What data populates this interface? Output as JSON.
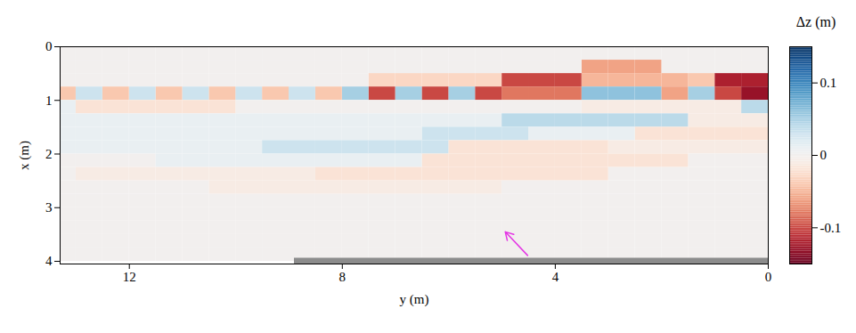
{
  "chart_data": {
    "type": "heatmap",
    "xlabel": "y (m)",
    "ylabel": "x (m)",
    "xlim": [
      13.3,
      0
    ],
    "xticks": [
      0,
      4,
      8,
      12
    ],
    "ylim": [
      0,
      4.05
    ],
    "yticks": [
      0,
      1,
      2,
      3,
      4
    ],
    "cells": {
      "y_edges": [
        0,
        0.5,
        1,
        1.5,
        2,
        2.5,
        3,
        3.5,
        4,
        4.5,
        5,
        5.5,
        6,
        6.5,
        7,
        7.5,
        8,
        8.5,
        9,
        9.5,
        10,
        10.5,
        11,
        11.5,
        12,
        12.5,
        13,
        13.5
      ],
      "x_edges": [
        0,
        0.25,
        0.5,
        0.75,
        1,
        1.25,
        1.5,
        1.75,
        2,
        2.25,
        2.5,
        2.75,
        3,
        3.25,
        3.5,
        3.75,
        4
      ],
      "z": [
        [
          0,
          0,
          0,
          0,
          0,
          0,
          0,
          0,
          0,
          0,
          0,
          0,
          0,
          0,
          0,
          0,
          0,
          0,
          0,
          0,
          0,
          0,
          0,
          0,
          0,
          0,
          0
        ],
        [
          0,
          0,
          0,
          0,
          -0.06,
          -0.06,
          -0.06,
          0,
          0,
          0,
          0,
          0,
          0,
          0,
          0,
          0,
          0,
          0,
          0,
          0,
          0,
          0,
          0,
          0,
          0,
          0,
          0
        ],
        [
          -0.12,
          -0.12,
          -0.04,
          -0.05,
          -0.05,
          -0.05,
          -0.05,
          -0.1,
          -0.1,
          -0.1,
          -0.03,
          -0.03,
          -0.03,
          -0.03,
          -0.03,
          0,
          0,
          0,
          0,
          0,
          0,
          0,
          0,
          0,
          0,
          0,
          0
        ],
        [
          -0.13,
          -0.1,
          0.05,
          -0.06,
          0.06,
          0.06,
          0.06,
          -0.08,
          -0.08,
          -0.08,
          -0.1,
          0.05,
          -0.1,
          0.05,
          -0.1,
          0.05,
          -0.04,
          0.03,
          -0.04,
          0.03,
          -0.04,
          0.03,
          -0.04,
          0.03,
          -0.04,
          0.03,
          -0.04
        ],
        [
          0.04,
          -0.01,
          -0.01,
          -0.01,
          -0.01,
          -0.01,
          -0.01,
          0,
          0,
          0,
          0,
          0,
          0,
          0,
          0,
          0,
          0,
          0,
          0,
          0,
          -0.02,
          -0.02,
          -0.02,
          -0.02,
          -0.02,
          -0.02,
          0.01
        ],
        [
          -0.01,
          -0.01,
          -0.01,
          0.04,
          0.04,
          0.04,
          0.04,
          0.04,
          0.04,
          0.04,
          0.01,
          0.01,
          0.01,
          0.01,
          0.01,
          0.01,
          0.01,
          0.01,
          0.01,
          0.01,
          0.01,
          0.01,
          0.01,
          0.01,
          0.01,
          0.01,
          0.01
        ],
        [
          -0.02,
          -0.02,
          -0.02,
          -0.02,
          -0.02,
          0.01,
          0.01,
          0.01,
          0.01,
          0.03,
          0.03,
          0.03,
          0.03,
          0.01,
          0.01,
          0.01,
          0.01,
          0.01,
          0.01,
          0.01,
          0.01,
          0.01,
          0.01,
          0.01,
          0.01,
          0.01,
          0.01
        ],
        [
          -0.01,
          -0.01,
          -0.01,
          -0.01,
          -0.01,
          -0.01,
          -0.02,
          -0.02,
          -0.02,
          -0.02,
          -0.02,
          -0.02,
          0.03,
          0.03,
          0.03,
          0.03,
          0.03,
          0.03,
          0.03,
          0.01,
          0.01,
          0.01,
          0.01,
          0.01,
          0.01,
          0.01,
          0.01
        ],
        [
          0,
          0,
          0,
          -0.02,
          -0.02,
          -0.02,
          -0.02,
          -0.02,
          -0.02,
          -0.02,
          -0.02,
          -0.02,
          -0.02,
          0.01,
          0.01,
          0.01,
          0.01,
          0.01,
          0.01,
          0.01,
          0.01,
          0.01,
          0.01,
          0,
          0,
          0,
          0
        ],
        [
          0,
          0,
          0,
          0,
          0,
          0,
          -0.02,
          -0.02,
          -0.02,
          -0.02,
          -0.02,
          -0.02,
          -0.02,
          -0.02,
          -0.02,
          -0.02,
          -0.02,
          -0.01,
          -0.01,
          -0.01,
          -0.01,
          -0.01,
          -0.01,
          -0.01,
          -0.01,
          -0.01,
          0
        ],
        [
          0,
          0,
          0,
          0,
          0,
          0,
          0,
          0,
          0,
          0,
          -0.01,
          -0.01,
          -0.01,
          -0.01,
          -0.01,
          -0.01,
          -0.01,
          -0.01,
          -0.01,
          -0.01,
          -0.01,
          0,
          0,
          0,
          0,
          0,
          0
        ],
        [
          0,
          0,
          0,
          0,
          0,
          0,
          0,
          0,
          0,
          0,
          0,
          0,
          0,
          0,
          0,
          0,
          0,
          0,
          0,
          0,
          0,
          0,
          0,
          0,
          0,
          0,
          0
        ],
        [
          0,
          0,
          0,
          0,
          0,
          0,
          0,
          0,
          0,
          0,
          0,
          0,
          0,
          0,
          0,
          0,
          0,
          0,
          0,
          0,
          0,
          0,
          0,
          0,
          0,
          0,
          0
        ],
        [
          0,
          0,
          0,
          0,
          0,
          0,
          0,
          0,
          0,
          0,
          0,
          0,
          0,
          0,
          0,
          0,
          0,
          0,
          0,
          0,
          0,
          0,
          0,
          0,
          0,
          0,
          0
        ],
        [
          0,
          0,
          0,
          0,
          0,
          0,
          0,
          0,
          0,
          0,
          0,
          0,
          0,
          0,
          0,
          0,
          0,
          0,
          0,
          0,
          0,
          0,
          0,
          0,
          0,
          0,
          0
        ],
        [
          0,
          0,
          0,
          0,
          0,
          0,
          0,
          0,
          0,
          0,
          0,
          0,
          0,
          0,
          0,
          0,
          0,
          0,
          0,
          0,
          0,
          0,
          0,
          0,
          0,
          0,
          0
        ]
      ]
    },
    "colorbar": {
      "label": "Δz (m)",
      "range": [
        -0.15,
        0.15
      ],
      "ticks": [
        -0.1,
        0,
        0.1
      ]
    },
    "structure": {
      "x": 4,
      "y": [
        8.9,
        0
      ],
      "color": "#8c8c8c"
    },
    "arrow": {
      "x": [
        3.89,
        3.45
      ],
      "y": [
        4.52,
        4.94
      ],
      "color": "#e436e4"
    }
  }
}
